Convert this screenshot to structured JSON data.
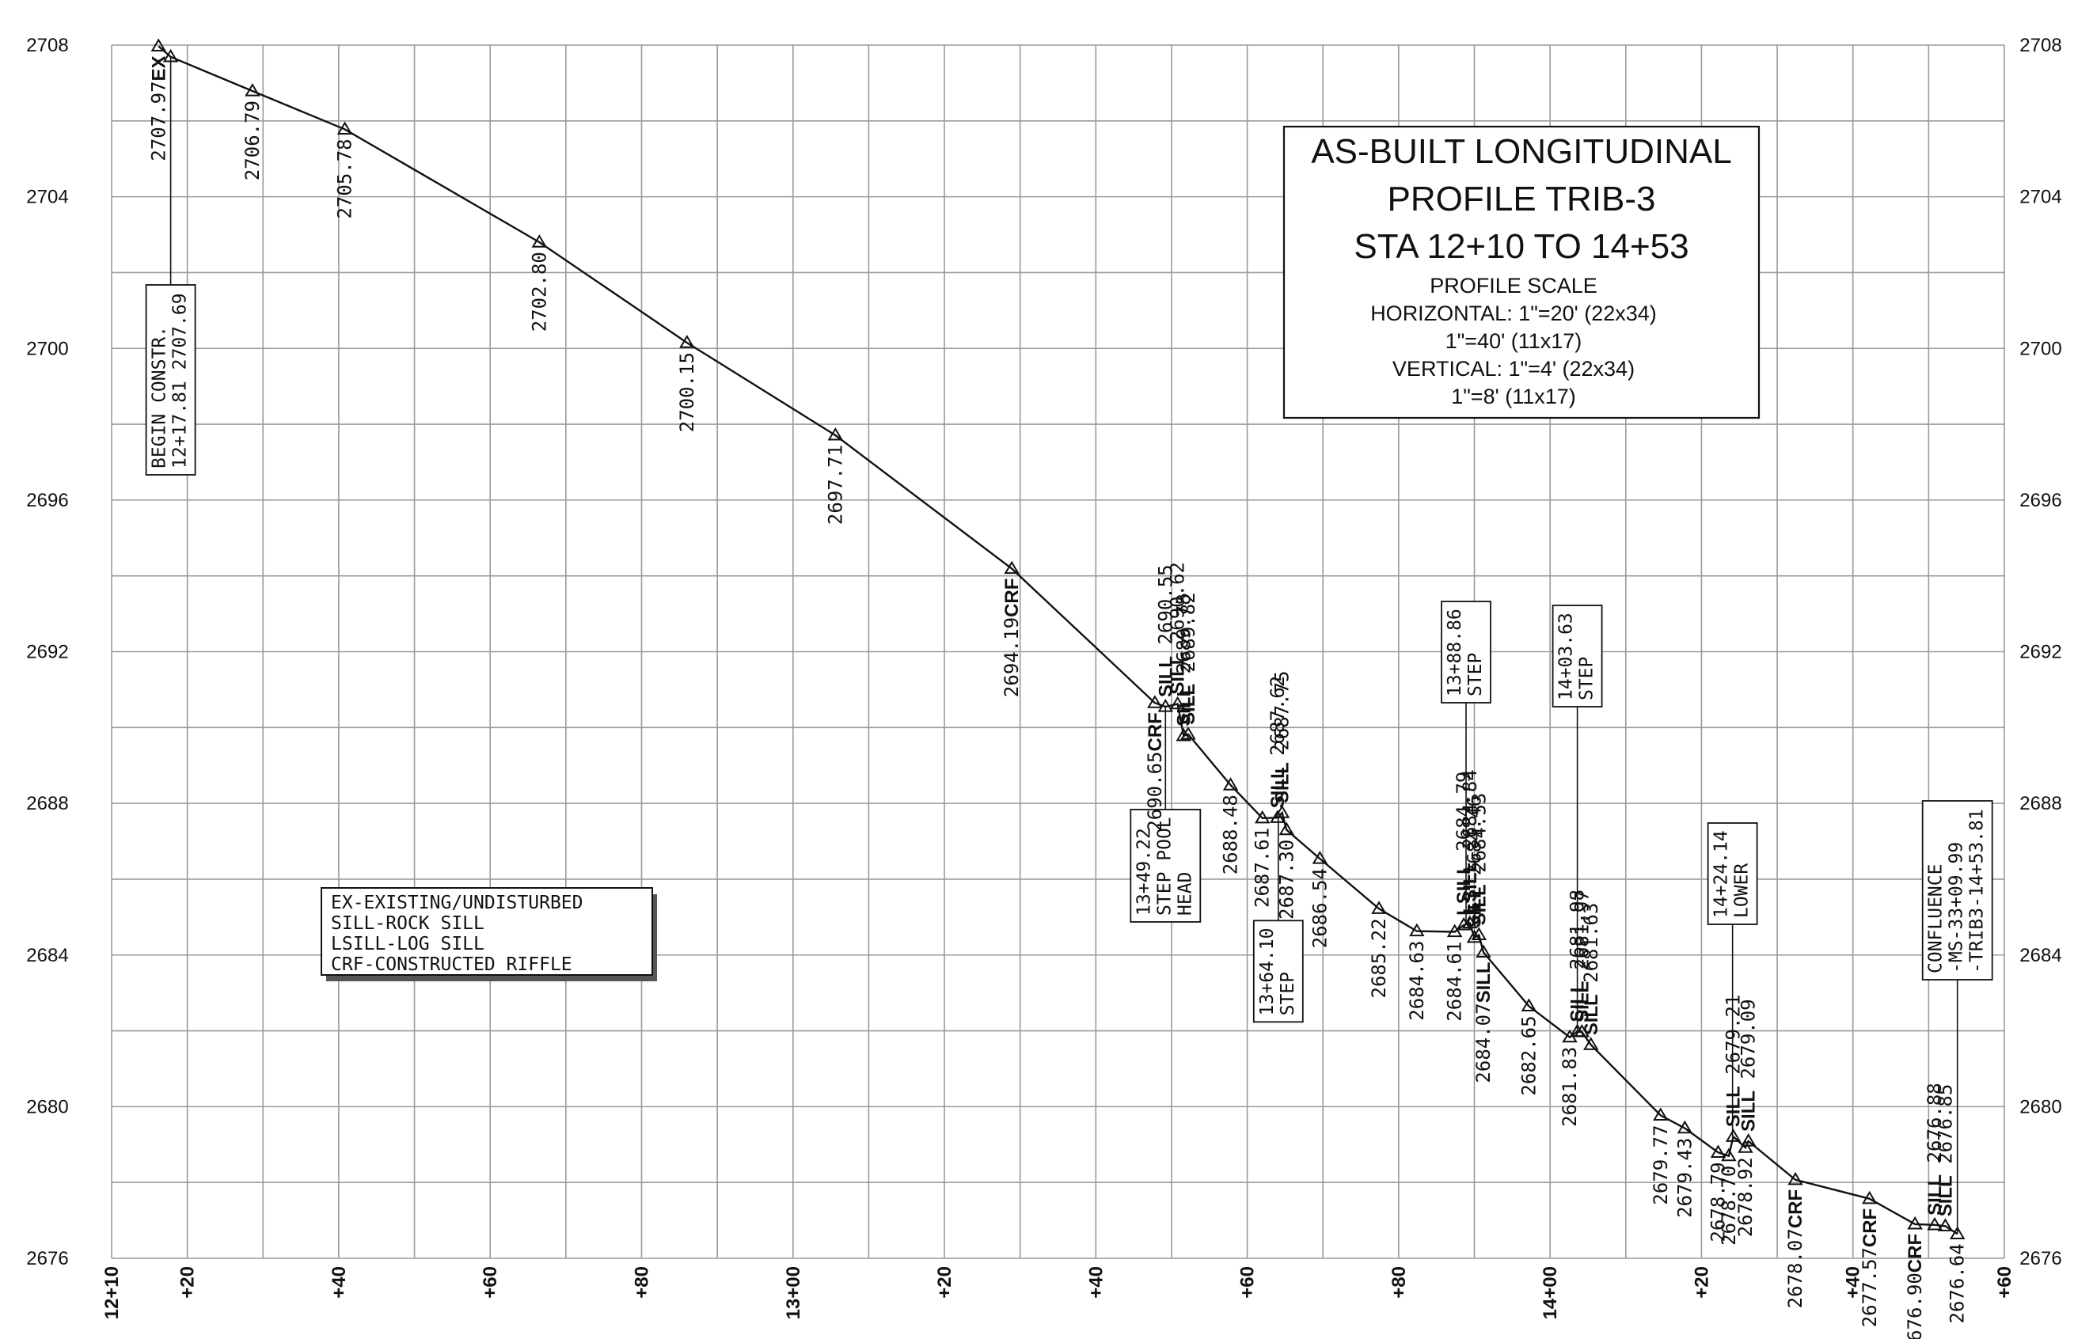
{
  "chart_data": {
    "type": "line",
    "title_lines": [
      "AS-BUILT LONGITUDINAL",
      "PROFILE TRIB-3",
      "STA 12+10 TO 14+53"
    ],
    "scale_lines": [
      "PROFILE SCALE",
      "HORIZONTAL: 1\"=20' (22x34)",
      "1\"=40' (11x17)",
      "VERTICAL: 1\"=4' (22x34)",
      "1\"=8' (11x17)"
    ],
    "xlim": [
      1210,
      1460
    ],
    "ylim": [
      2676,
      2708
    ],
    "y_ticks": [
      2676,
      2680,
      2684,
      2688,
      2692,
      2696,
      2700,
      2704,
      2708
    ],
    "y_tick_labels": [
      "2676",
      "2680",
      "2684",
      "2688",
      "2692",
      "2696",
      "2700",
      "2704",
      "2708"
    ],
    "x_ticks": [
      1210,
      1220,
      1240,
      1260,
      1280,
      1300,
      1320,
      1340,
      1360,
      1380,
      1400,
      1420,
      1440,
      1460
    ],
    "x_tick_labels": [
      "12+10",
      "+20",
      "+40",
      "+60",
      "+80",
      "13+00",
      "+20",
      "+40",
      "+60",
      "+80",
      "14+00",
      "+20",
      "+40",
      "+60"
    ],
    "grid": true,
    "points": [
      {
        "x": 1216.2,
        "y": 2707.97,
        "label": "2707.97",
        "code": "EX"
      },
      {
        "x": 1217.8,
        "y": 2707.69,
        "label": "",
        "code": ""
      },
      {
        "x": 1228.6,
        "y": 2706.79,
        "label": "2706.79",
        "code": ""
      },
      {
        "x": 1240.8,
        "y": 2705.78,
        "label": "2705.78",
        "code": ""
      },
      {
        "x": 1266.5,
        "y": 2702.8,
        "label": "2702.80",
        "code": ""
      },
      {
        "x": 1286.0,
        "y": 2700.15,
        "label": "2700.15",
        "code": ""
      },
      {
        "x": 1305.6,
        "y": 2697.71,
        "label": "2697.71",
        "code": ""
      },
      {
        "x": 1328.9,
        "y": 2694.19,
        "label": "2694.19",
        "code": "CRF"
      },
      {
        "x": 1347.8,
        "y": 2690.65,
        "label": "2690.65",
        "code": "CRF"
      },
      {
        "x": 1349.2,
        "y": 2690.55,
        "label": "2690.55",
        "code": "SILL"
      },
      {
        "x": 1350.8,
        "y": 2690.62,
        "label": "2690.62",
        "code": "SILL"
      },
      {
        "x": 1351.6,
        "y": 2689.78,
        "label": "2689.78",
        "code": "SILL"
      },
      {
        "x": 1352.2,
        "y": 2689.82,
        "label": "2689.82",
        "code": "SILL"
      },
      {
        "x": 1357.8,
        "y": 2688.48,
        "label": "2688.48",
        "code": ""
      },
      {
        "x": 1362.0,
        "y": 2687.61,
        "label": "2687.61",
        "code": ""
      },
      {
        "x": 1364.0,
        "y": 2687.62,
        "label": "2687.62",
        "code": "SILL"
      },
      {
        "x": 1364.6,
        "y": 2687.75,
        "label": "2687.75",
        "code": "SILL"
      },
      {
        "x": 1365.2,
        "y": 2687.3,
        "label": "2687.30",
        "code": ""
      },
      {
        "x": 1369.6,
        "y": 2686.54,
        "label": "2686.54",
        "code": ""
      },
      {
        "x": 1377.4,
        "y": 2685.22,
        "label": "2685.22",
        "code": ""
      },
      {
        "x": 1382.4,
        "y": 2684.63,
        "label": "2684.63",
        "code": ""
      },
      {
        "x": 1387.4,
        "y": 2684.61,
        "label": "2684.61",
        "code": ""
      },
      {
        "x": 1388.6,
        "y": 2684.79,
        "label": "2684.79",
        "code": "LSILL"
      },
      {
        "x": 1389.4,
        "y": 2684.84,
        "label": "2684.84",
        "code": "LSILL"
      },
      {
        "x": 1390.0,
        "y": 2684.46,
        "label": "2684.46",
        "code": "SILL"
      },
      {
        "x": 1390.6,
        "y": 2684.53,
        "label": "2684.53",
        "code": "SILL"
      },
      {
        "x": 1391.2,
        "y": 2684.07,
        "label": "2684.07",
        "code": "SILL"
      },
      {
        "x": 1397.2,
        "y": 2682.65,
        "label": "2682.65",
        "code": ""
      },
      {
        "x": 1402.6,
        "y": 2681.83,
        "label": "2681.83",
        "code": ""
      },
      {
        "x": 1403.6,
        "y": 2681.98,
        "label": "2681.98",
        "code": "SILL"
      },
      {
        "x": 1404.2,
        "y": 2681.97,
        "label": "2681.97",
        "code": "SILL"
      },
      {
        "x": 1405.4,
        "y": 2681.63,
        "label": "2681.63",
        "code": "SILL"
      },
      {
        "x": 1414.6,
        "y": 2679.77,
        "label": "2679.77",
        "code": ""
      },
      {
        "x": 1417.8,
        "y": 2679.43,
        "label": "2679.43",
        "code": ""
      },
      {
        "x": 1422.2,
        "y": 2678.79,
        "label": "2678.79",
        "code": ""
      },
      {
        "x": 1423.6,
        "y": 2678.7,
        "label": "2678.70",
        "code": ""
      },
      {
        "x": 1424.2,
        "y": 2679.21,
        "label": "2679.21",
        "code": "SILL"
      },
      {
        "x": 1425.8,
        "y": 2678.92,
        "label": "2678.92",
        "code": ""
      },
      {
        "x": 1426.2,
        "y": 2679.09,
        "label": "2679.09",
        "code": "SILL"
      },
      {
        "x": 1432.4,
        "y": 2678.07,
        "label": "2678.07",
        "code": "CRF"
      },
      {
        "x": 1442.2,
        "y": 2677.57,
        "label": "2677.57",
        "code": "CRF"
      },
      {
        "x": 1448.2,
        "y": 2676.9,
        "label": "2676.90",
        "code": "CRF"
      },
      {
        "x": 1450.8,
        "y": 2676.88,
        "label": "2676.88",
        "code": "SILL"
      },
      {
        "x": 1452.2,
        "y": 2676.85,
        "label": "2676.85",
        "code": "SILL"
      },
      {
        "x": 1453.8,
        "y": 2676.64,
        "label": "2676.64",
        "code": ""
      }
    ],
    "callouts": [
      {
        "x": 1217.8,
        "y": 2707.69,
        "lines": [
          "BEGIN CONSTR.",
          "12+17.81 2707.69"
        ]
      },
      {
        "x": 1349.2,
        "y": 2690.55,
        "lines": [
          "13+49.22",
          "STEP POOL",
          "HEAD"
        ]
      },
      {
        "x": 1364.1,
        "y": 2687.62,
        "lines": [
          "13+64.10",
          "STEP"
        ]
      },
      {
        "x": 1388.9,
        "y": 2684.84,
        "lines": [
          "13+88.86",
          "STEP"
        ]
      },
      {
        "x": 1403.6,
        "y": 2681.98,
        "lines": [
          "14+03.63",
          "STEP"
        ]
      },
      {
        "x": 1424.1,
        "y": 2679.21,
        "lines": [
          "14+24.14",
          "LOWER"
        ]
      },
      {
        "x": 1453.8,
        "y": 2676.64,
        "lines": [
          "CONFLUENCE",
          "-MS-33+09.99",
          "-TRIB3-14+53.81"
        ]
      }
    ],
    "legend": [
      "EX-EXISTING/UNDISTURBED",
      "SILL-ROCK SILL",
      "LSILL-LOG SILL",
      "CRF-CONSTRUCTED RIFFLE"
    ]
  }
}
